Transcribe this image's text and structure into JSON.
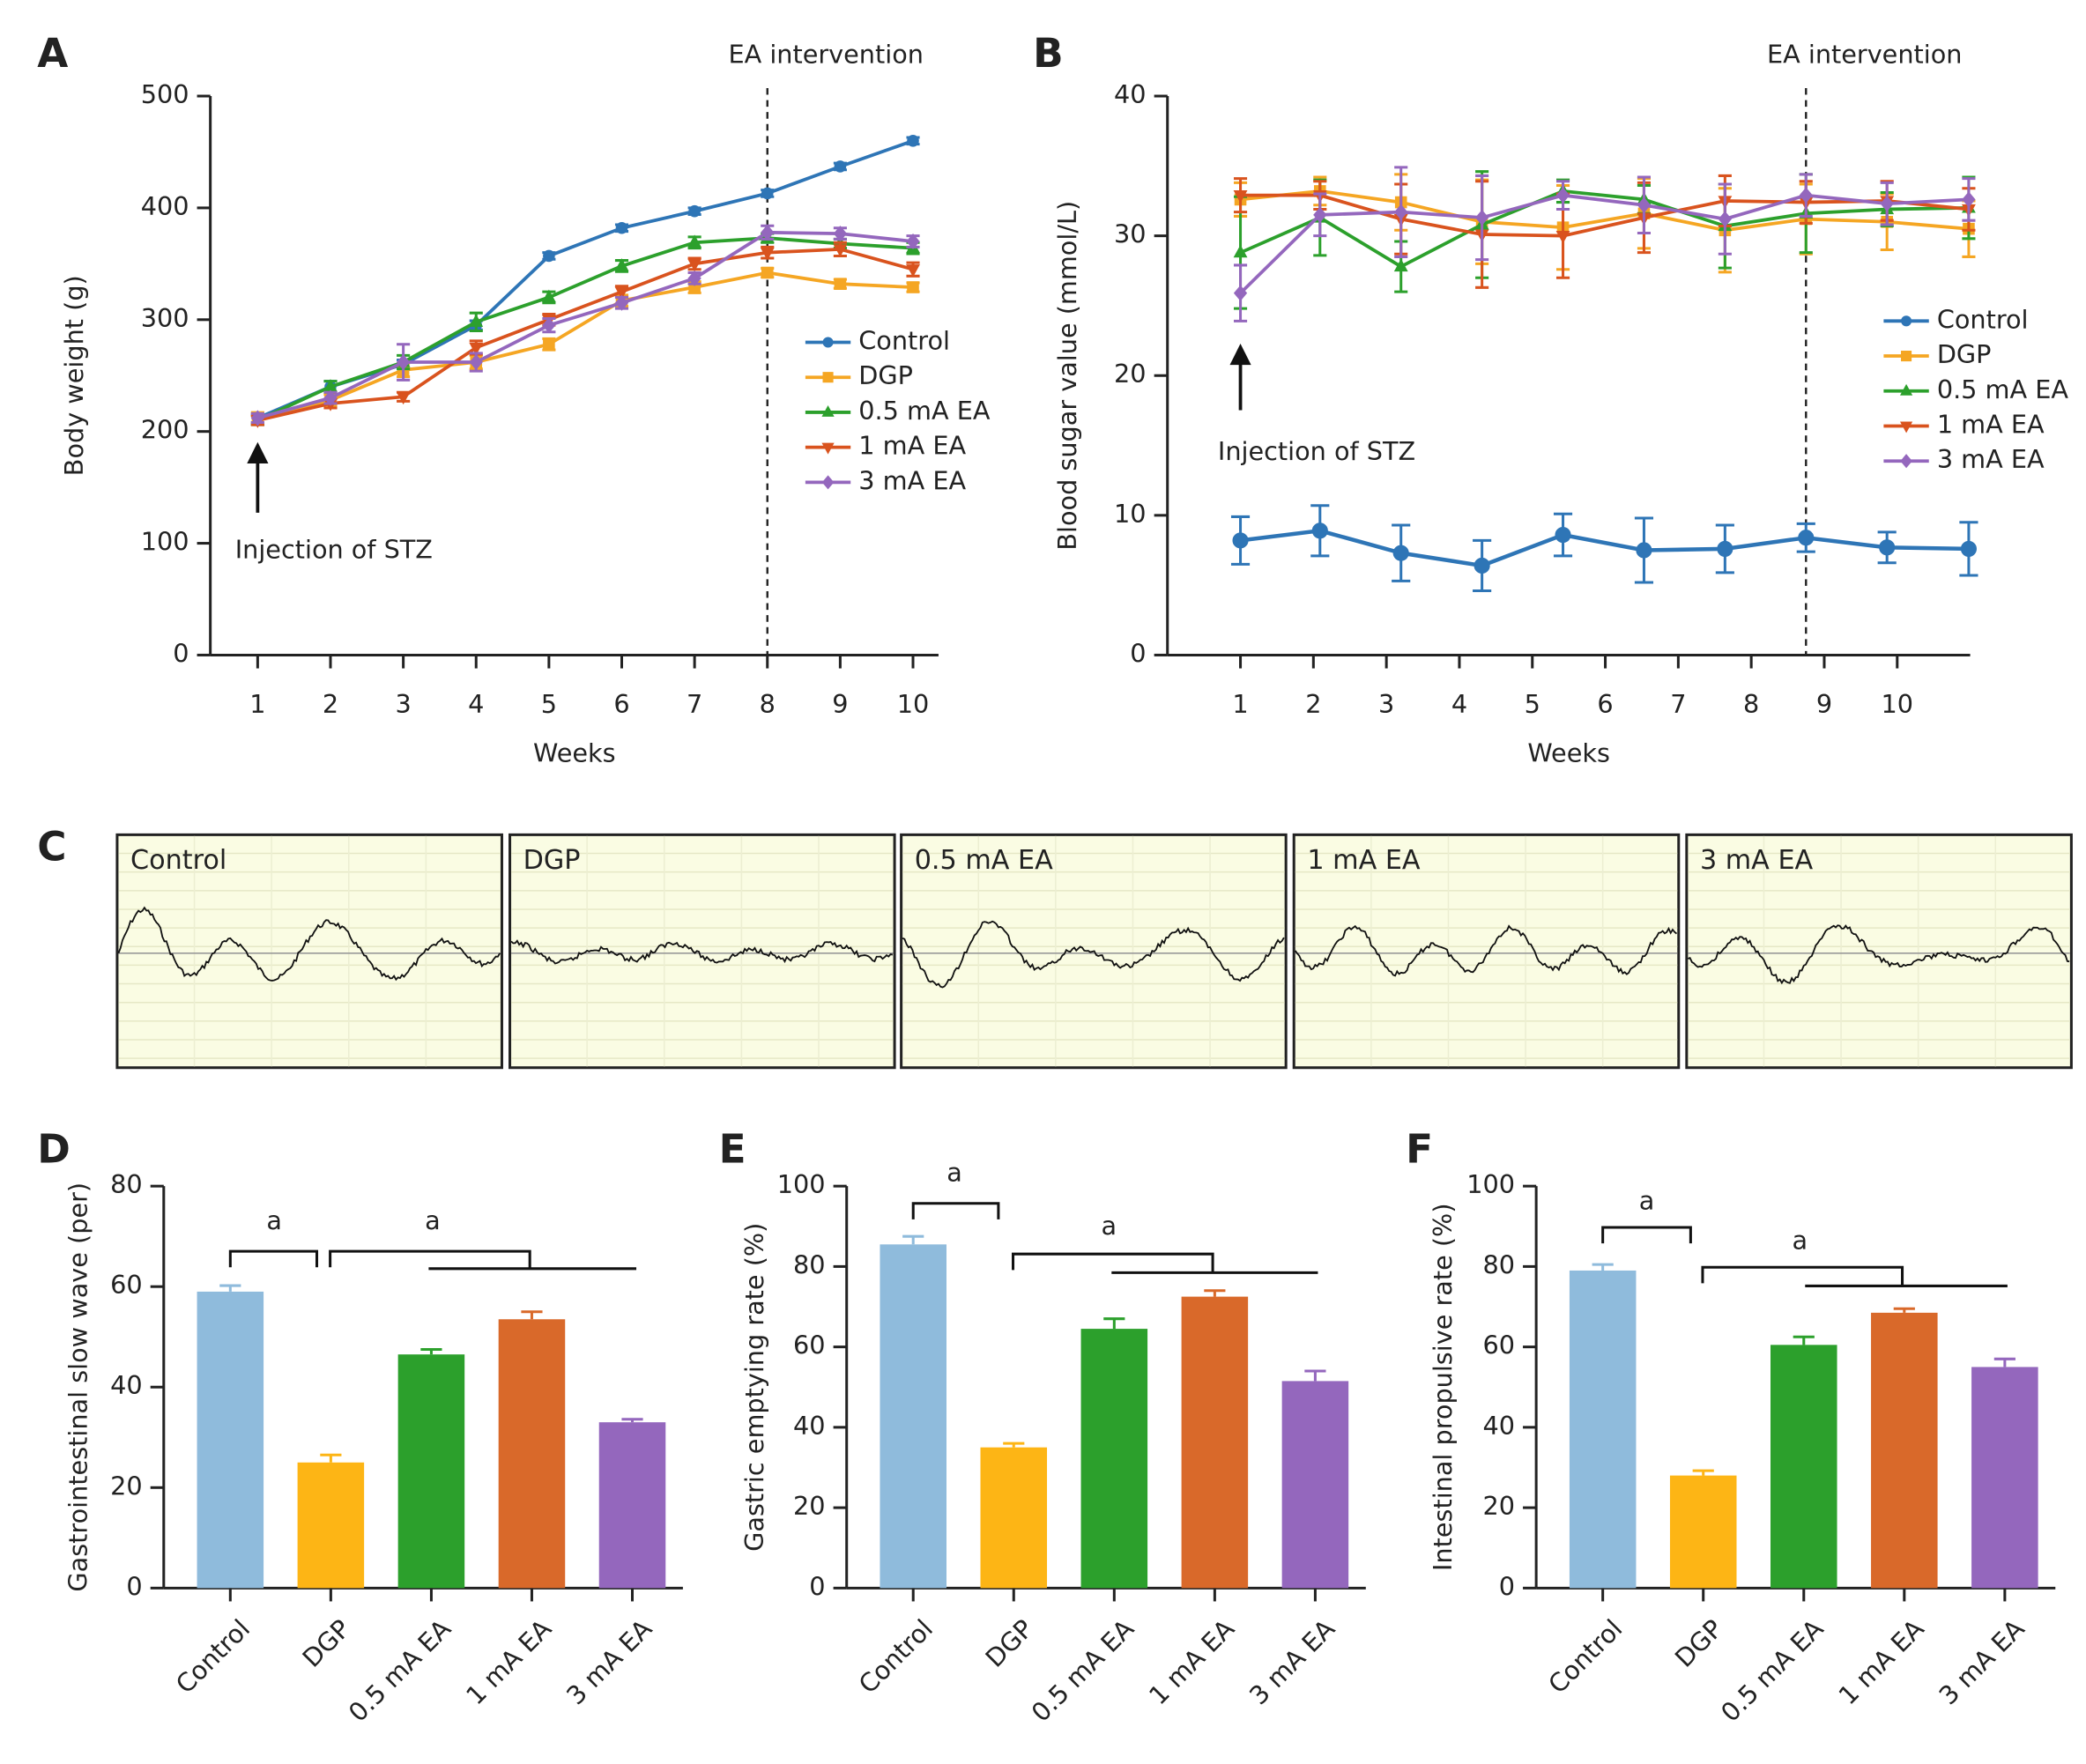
{
  "chart_data": [
    {
      "type": "line",
      "panel": "A",
      "xlabel": "Weeks",
      "ylabel": "Body weight (g)",
      "x": [
        1,
        2,
        3,
        4,
        5,
        6,
        7,
        8,
        9,
        10
      ],
      "xlim": [
        0.35,
        10.35
      ],
      "xticks": [
        1,
        2,
        3,
        4,
        5,
        6,
        7,
        8,
        9,
        10
      ],
      "ylim": [
        0,
        500
      ],
      "yticks": [
        0,
        100,
        200,
        300,
        400,
        500
      ],
      "vline": {
        "x": 8,
        "label": "EA intervention"
      },
      "arrow": {
        "x": 1,
        "label": "Injection of STZ"
      },
      "series": [
        {
          "name": "Control",
          "color": "#2e75b6",
          "marker": "circle",
          "values": [
            212,
            240,
            260,
            295,
            357,
            382,
            397,
            413,
            437,
            460
          ],
          "errors": [
            4,
            5,
            4,
            4,
            3,
            3,
            3,
            3,
            3,
            3
          ]
        },
        {
          "name": "DGP",
          "color": "#f5a623",
          "marker": "square",
          "values": [
            212,
            228,
            255,
            262,
            278,
            317,
            329,
            342,
            332,
            329
          ],
          "errors": [
            5,
            5,
            6,
            6,
            5,
            5,
            5,
            4,
            4,
            4
          ]
        },
        {
          "name": "0.5 mA EA",
          "color": "#2ca02c",
          "marker": "triangle-up",
          "values": [
            210,
            240,
            262,
            298,
            320,
            348,
            369,
            373,
            368,
            364
          ],
          "errors": [
            4,
            5,
            6,
            8,
            5,
            5,
            5,
            4,
            4,
            5
          ]
        },
        {
          "name": "1 mA EA",
          "color": "#d9531e",
          "marker": "triangle-down",
          "values": [
            210,
            225,
            231,
            275,
            300,
            325,
            350,
            360,
            363,
            345
          ],
          "errors": [
            4,
            4,
            4,
            6,
            5,
            5,
            5,
            5,
            6,
            6
          ]
        },
        {
          "name": "3 mA EA",
          "color": "#9467bd",
          "marker": "diamond",
          "values": [
            212,
            230,
            262,
            262,
            295,
            315,
            337,
            378,
            377,
            370
          ],
          "errors": [
            4,
            5,
            16,
            8,
            6,
            5,
            5,
            6,
            5,
            5
          ]
        }
      ]
    },
    {
      "type": "line",
      "panel": "B",
      "xlabel": "Weeks",
      "ylabel": "Blood sugar value (mmol/L)",
      "x": [
        1,
        2.09,
        3.2,
        4.31,
        5.42,
        6.53,
        7.64,
        8.75,
        9.86,
        10.98
      ],
      "xlim": [
        0,
        11
      ],
      "xticks": [
        1,
        2,
        3,
        4,
        5,
        6,
        7,
        8,
        9,
        10
      ],
      "ylim": [
        0,
        40
      ],
      "yticks": [
        0,
        10,
        20,
        30,
        40
      ],
      "vline": {
        "x": 8.75,
        "label": "EA intervention"
      },
      "arrow": {
        "x": 1,
        "label": "Injection of STZ"
      },
      "series": [
        {
          "name": "Control",
          "color": "#2e75b6",
          "marker": "circle",
          "values": [
            8.2,
            8.9,
            7.3,
            6.4,
            8.6,
            7.5,
            7.6,
            8.4,
            7.7,
            7.6
          ],
          "errors": [
            1.7,
            1.8,
            2.0,
            1.8,
            1.5,
            2.3,
            1.7,
            1.0,
            1.1,
            1.9
          ]
        },
        {
          "name": "DGP",
          "color": "#f5a623",
          "marker": "square",
          "values": [
            32.6,
            33.2,
            32.4,
            31.0,
            30.6,
            31.6,
            30.4,
            31.2,
            31.0,
            30.5
          ],
          "errors": [
            1.2,
            1.0,
            2.0,
            3.0,
            3.0,
            2.5,
            3.0,
            2.5,
            2.0,
            2.0
          ]
        },
        {
          "name": "0.5 mA EA",
          "color": "#2ca02c",
          "marker": "triangle-up",
          "values": [
            28.8,
            31.3,
            27.8,
            30.8,
            33.2,
            32.6,
            30.7,
            31.6,
            31.9,
            32.0
          ],
          "errors": [
            4.0,
            2.7,
            1.8,
            3.8,
            0.8,
            1.0,
            3.0,
            2.8,
            1.2,
            2.2
          ]
        },
        {
          "name": "1 mA EA",
          "color": "#d9531e",
          "marker": "triangle-down",
          "values": [
            32.9,
            32.9,
            31.2,
            30.1,
            30.0,
            31.3,
            32.5,
            32.4,
            32.5,
            31.9
          ],
          "errors": [
            1.2,
            1.0,
            2.5,
            3.8,
            3.0,
            2.5,
            1.8,
            1.5,
            1.4,
            1.5
          ]
        },
        {
          "name": "3 mA EA",
          "color": "#9467bd",
          "marker": "diamond",
          "values": [
            25.9,
            31.5,
            31.7,
            31.3,
            32.9,
            32.2,
            31.2,
            32.9,
            32.3,
            32.6
          ],
          "errors": [
            2.0,
            1.5,
            3.2,
            3.0,
            1.0,
            2.0,
            2.5,
            1.5,
            1.5,
            1.5
          ]
        }
      ]
    },
    {
      "type": "bar",
      "panel": "D",
      "ylabel": "Gastrointestinal slow wave (per)",
      "categories": [
        "Control",
        "DGP",
        "0.5 mA EA",
        "1 mA EA",
        "3 mA EA"
      ],
      "values": [
        59,
        25,
        46.5,
        53.5,
        33
      ],
      "errors": [
        1.2,
        1.5,
        1.0,
        1.5,
        0.6
      ],
      "colors": [
        "#8fbbdc",
        "#fdb515",
        "#2ca02c",
        "#d9692a",
        "#9467bd"
      ],
      "ylim": [
        0,
        80
      ],
      "yticks": [
        0,
        20,
        40,
        60,
        80
      ],
      "annotations": [
        "a",
        "a"
      ]
    },
    {
      "type": "bar",
      "panel": "E",
      "ylabel": "Gastric emptying rate (%)",
      "categories": [
        "Control",
        "DGP",
        "0.5 mA EA",
        "1 mA EA",
        "3 mA EA"
      ],
      "values": [
        85.5,
        35,
        64.5,
        72.5,
        51.5
      ],
      "errors": [
        2.0,
        1.0,
        2.5,
        1.5,
        2.5
      ],
      "colors": [
        "#8fbbdc",
        "#fdb515",
        "#2ca02c",
        "#d9692a",
        "#9467bd"
      ],
      "ylim": [
        0,
        100
      ],
      "yticks": [
        0,
        20,
        40,
        60,
        80,
        100
      ],
      "annotations": [
        "a",
        "a"
      ]
    },
    {
      "type": "bar",
      "panel": "F",
      "ylabel": "Intestinal propulsive rate (%)",
      "categories": [
        "Control",
        "DGP",
        "0.5 mA EA",
        "1 mA EA",
        "3 mA EA"
      ],
      "values": [
        79,
        28,
        60.5,
        68.5,
        55
      ],
      "errors": [
        1.5,
        1.2,
        2.0,
        1.0,
        2.0
      ],
      "colors": [
        "#8fbbdc",
        "#fdb515",
        "#2ca02c",
        "#d9692a",
        "#9467bd"
      ],
      "ylim": [
        0,
        100
      ],
      "yticks": [
        0,
        20,
        40,
        60,
        80,
        100
      ],
      "annotations": [
        "a",
        "a"
      ]
    }
  ],
  "waveforms": {
    "panel": "C",
    "labels": [
      "Control",
      "DGP",
      "0.5 mA EA",
      "1 mA EA",
      "3 mA EA"
    ]
  }
}
